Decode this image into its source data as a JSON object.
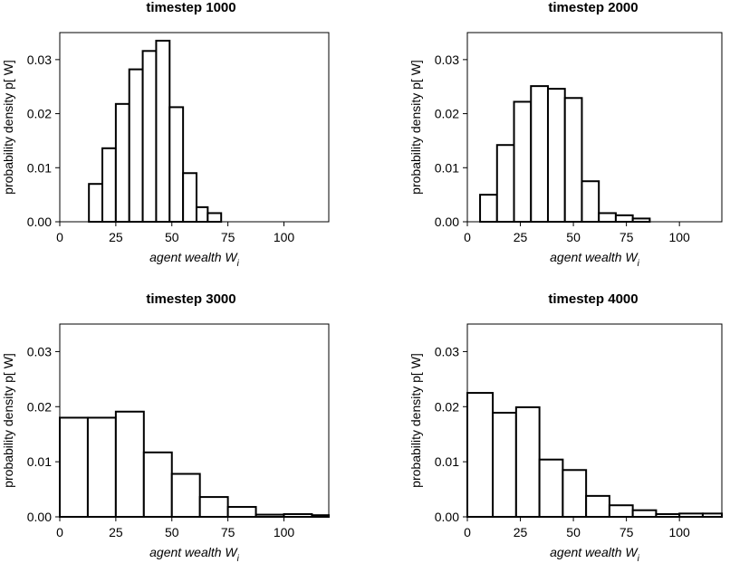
{
  "chart_data": [
    {
      "type": "bar",
      "title": "timestep 1000",
      "xlabel": "agent wealth W",
      "xlabel_sub": "i",
      "ylabel": "probability density p[ W]",
      "xlim": [
        0,
        120
      ],
      "ylim": [
        0,
        0.035
      ],
      "xticks": [
        0,
        25,
        50,
        75,
        100
      ],
      "xtick_labels": [
        "0",
        "25",
        "50",
        "75",
        "100"
      ],
      "yticks": [
        0,
        0.01,
        0.02,
        0.03
      ],
      "ytick_labels": [
        "0.00",
        "0.01",
        "0.02",
        "0.03"
      ],
      "bins": [
        [
          13,
          19,
          0.007
        ],
        [
          19,
          25,
          0.0136
        ],
        [
          25,
          31,
          0.0218
        ],
        [
          31,
          37,
          0.0282
        ],
        [
          37,
          43,
          0.0316
        ],
        [
          43,
          49,
          0.0335
        ],
        [
          49,
          55,
          0.0212
        ],
        [
          55,
          61,
          0.009
        ],
        [
          61,
          66,
          0.0027
        ],
        [
          66,
          72,
          0.0016
        ]
      ]
    },
    {
      "type": "bar",
      "title": "timestep 2000",
      "xlabel": "agent wealth W",
      "xlabel_sub": "i",
      "ylabel": "probability density p[ W]",
      "xlim": [
        0,
        120
      ],
      "ylim": [
        0,
        0.035
      ],
      "xticks": [
        0,
        25,
        50,
        75,
        100
      ],
      "xtick_labels": [
        "0",
        "25",
        "50",
        "75",
        "100"
      ],
      "yticks": [
        0,
        0.01,
        0.02,
        0.03
      ],
      "ytick_labels": [
        "0.00",
        "0.01",
        "0.02",
        "0.03"
      ],
      "bins": [
        [
          6,
          14,
          0.005
        ],
        [
          14,
          22,
          0.0142
        ],
        [
          22,
          30,
          0.0222
        ],
        [
          30,
          38,
          0.0251
        ],
        [
          38,
          46,
          0.0246
        ],
        [
          46,
          54,
          0.0229
        ],
        [
          54,
          62,
          0.0075
        ],
        [
          62,
          70,
          0.0016
        ],
        [
          70,
          78,
          0.0012
        ],
        [
          78,
          86,
          0.0006
        ]
      ]
    },
    {
      "type": "bar",
      "title": "timestep 3000",
      "xlabel": "agent wealth W",
      "xlabel_sub": "i",
      "ylabel": "probability density p[ W]",
      "xlim": [
        0,
        120
      ],
      "ylim": [
        0,
        0.035
      ],
      "xticks": [
        0,
        25,
        50,
        75,
        100
      ],
      "xtick_labels": [
        "0",
        "25",
        "50",
        "75",
        "100"
      ],
      "yticks": [
        0,
        0.01,
        0.02,
        0.03
      ],
      "ytick_labels": [
        "0.00",
        "0.01",
        "0.02",
        "0.03"
      ],
      "bins": [
        [
          0,
          12.5,
          0.018
        ],
        [
          12.5,
          25,
          0.018
        ],
        [
          25,
          37.5,
          0.0191
        ],
        [
          37.5,
          50,
          0.0117
        ],
        [
          50,
          62.5,
          0.0078
        ],
        [
          62.5,
          75,
          0.0036
        ],
        [
          75,
          87.5,
          0.0018
        ],
        [
          87.5,
          100,
          0.0004
        ],
        [
          100,
          112.5,
          0.0005
        ],
        [
          112.5,
          120,
          0.0003
        ]
      ]
    },
    {
      "type": "bar",
      "title": "timestep 4000",
      "xlabel": "agent wealth W",
      "xlabel_sub": "i",
      "ylabel": "probability density p[ W]",
      "xlim": [
        0,
        120
      ],
      "ylim": [
        0,
        0.035
      ],
      "xticks": [
        0,
        25,
        50,
        75,
        100
      ],
      "xtick_labels": [
        "0",
        "25",
        "50",
        "75",
        "100"
      ],
      "yticks": [
        0,
        0.01,
        0.02,
        0.03
      ],
      "ytick_labels": [
        "0.00",
        "0.01",
        "0.02",
        "0.03"
      ],
      "bins": [
        [
          0,
          12,
          0.0225
        ],
        [
          12,
          23,
          0.0189
        ],
        [
          23,
          34,
          0.0199
        ],
        [
          34,
          45,
          0.0104
        ],
        [
          45,
          56,
          0.0085
        ],
        [
          56,
          67,
          0.0038
        ],
        [
          67,
          78,
          0.0021
        ],
        [
          78,
          89,
          0.0012
        ],
        [
          89,
          100,
          0.0005
        ],
        [
          100,
          111,
          0.0006
        ],
        [
          111,
          120,
          0.0006
        ]
      ]
    }
  ]
}
